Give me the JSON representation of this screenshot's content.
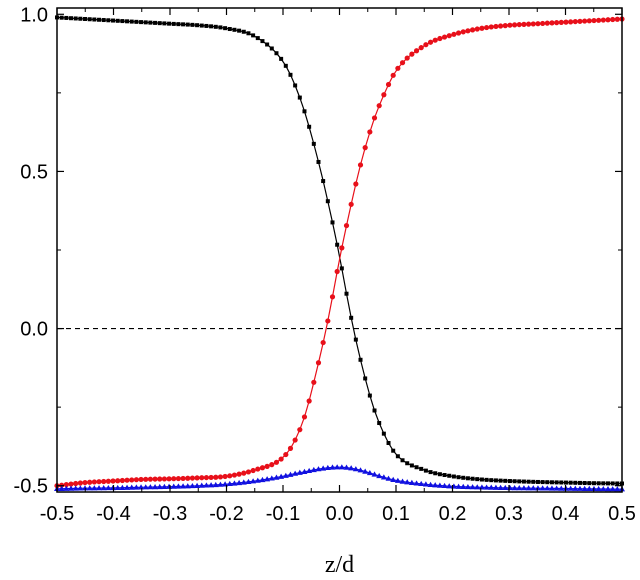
{
  "chart_data": {
    "type": "line",
    "title": "",
    "xlabel": "z/d",
    "ylabel": "",
    "xlim": [
      -0.5,
      0.5
    ],
    "ylim": [
      -0.52,
      1.02
    ],
    "x_ticks": [
      -0.5,
      -0.4,
      -0.3,
      -0.2,
      -0.1,
      0.0,
      0.1,
      0.2,
      0.3,
      0.4,
      0.5
    ],
    "x_tick_labels": [
      "-0.5",
      "-0.4",
      "-0.3",
      "-0.2",
      "-0.1",
      "0.0",
      "0.1",
      "0.2",
      "0.3",
      "0.4",
      "0.5"
    ],
    "y_ticks": [
      -0.5,
      0.0,
      0.5,
      1.0
    ],
    "y_tick_labels": [
      "-0.5",
      "0.0",
      "0.5",
      "1.0"
    ],
    "grid": false,
    "legend": "none",
    "reference_line": {
      "y": 0.0,
      "style": "dashed",
      "color": "#000000"
    },
    "series": [
      {
        "color": "#000000",
        "marker": "square",
        "x": [
          -0.5,
          -0.45,
          -0.4,
          -0.35,
          -0.3,
          -0.25,
          -0.2,
          -0.15,
          -0.1,
          -0.08,
          -0.06,
          -0.04,
          -0.02,
          0.0,
          0.02,
          0.04,
          0.06,
          0.08,
          0.1,
          0.15,
          0.2,
          0.25,
          0.3,
          0.35,
          0.4,
          0.45,
          0.5
        ],
        "values": [
          0.99,
          0.985,
          0.98,
          0.975,
          0.97,
          0.965,
          0.955,
          0.93,
          0.85,
          0.78,
          0.68,
          0.55,
          0.4,
          0.23,
          0.04,
          -0.12,
          -0.25,
          -0.34,
          -0.4,
          -0.45,
          -0.47,
          -0.48,
          -0.485,
          -0.488,
          -0.49,
          -0.492,
          -0.493
        ]
      },
      {
        "color": "#e8101a",
        "marker": "circle",
        "x": [
          -0.5,
          -0.45,
          -0.4,
          -0.35,
          -0.3,
          -0.25,
          -0.2,
          -0.15,
          -0.1,
          -0.08,
          -0.06,
          -0.04,
          -0.02,
          0.0,
          0.02,
          0.04,
          0.06,
          0.08,
          0.1,
          0.15,
          0.2,
          0.25,
          0.3,
          0.35,
          0.4,
          0.45,
          0.5
        ],
        "values": [
          -0.5,
          -0.49,
          -0.485,
          -0.48,
          -0.478,
          -0.475,
          -0.47,
          -0.45,
          -0.41,
          -0.36,
          -0.27,
          -0.13,
          0.03,
          0.22,
          0.39,
          0.54,
          0.66,
          0.75,
          0.82,
          0.9,
          0.935,
          0.955,
          0.965,
          0.97,
          0.975,
          0.98,
          0.985
        ]
      },
      {
        "color": "#1010e0",
        "marker": "triangle",
        "x": [
          -0.5,
          -0.45,
          -0.4,
          -0.35,
          -0.3,
          -0.25,
          -0.2,
          -0.15,
          -0.1,
          -0.08,
          -0.06,
          -0.04,
          -0.02,
          0.0,
          0.02,
          0.04,
          0.06,
          0.08,
          0.1,
          0.15,
          0.2,
          0.25,
          0.3,
          0.35,
          0.4,
          0.45,
          0.5
        ],
        "values": [
          -0.51,
          -0.508,
          -0.507,
          -0.505,
          -0.503,
          -0.5,
          -0.495,
          -0.485,
          -0.47,
          -0.462,
          -0.455,
          -0.448,
          -0.443,
          -0.441,
          -0.444,
          -0.452,
          -0.463,
          -0.474,
          -0.483,
          -0.495,
          -0.502,
          -0.505,
          -0.507,
          -0.508,
          -0.509,
          -0.51,
          -0.511
        ]
      }
    ]
  }
}
